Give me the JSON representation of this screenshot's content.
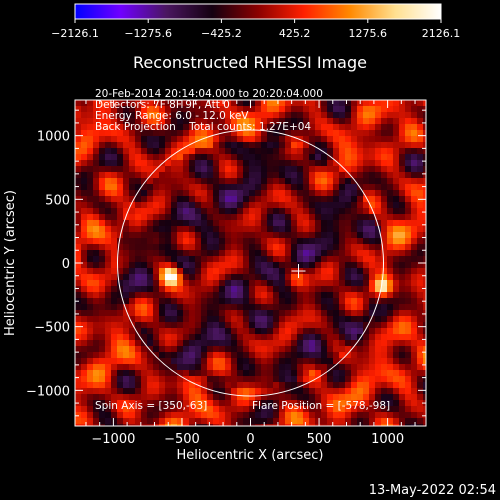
{
  "chart_data": {
    "type": "heatmap",
    "title": "Reconstructed RHESSI Image",
    "xlabel": "Heliocentric X (arcsec)",
    "ylabel": "Heliocentric Y (arcsec)",
    "xlim": [
      -1280,
      1280
    ],
    "ylim": [
      -1280,
      1280
    ],
    "xticks": [
      -1000,
      -500,
      0,
      500,
      1000
    ],
    "yticks": [
      -1000,
      -500,
      0,
      500,
      1000
    ],
    "colorbar": {
      "range": [
        -2126.1,
        2126.1
      ],
      "tick_values": [
        -2126.1,
        -1275.6,
        -425.2,
        425.2,
        1275.6,
        2126.1
      ],
      "tick_labels": [
        "−2126.1",
        "−1275.6",
        "−425.2",
        "425.2",
        "1275.6",
        "2126.1"
      ],
      "colors": [
        "#0000ff",
        "#7000ff",
        "#4a1660",
        "#140010",
        "#8b0000",
        "#ff2000",
        "#ff8800",
        "#ffe090",
        "#ffffff"
      ]
    },
    "info_lines": [
      "20-Feb-2014 20:14:04.000 to 20:20:04.000",
      "Detectors: 7F 8F 9F, Att 0",
      "Energy Range: 6.0 - 12.0 keV",
      "Back Projection    Total counts: 1.27E+04"
    ],
    "spin_axis_text": "Spin Axis = [350,-63]",
    "flare_position_text": "Flare Position = [-578,-98]",
    "solar_limb": {
      "center": [
        0,
        0
      ],
      "radius": 970
    },
    "spin_axis_marker": [
      350,
      -63
    ],
    "bright_sources": [
      {
        "x": -578,
        "y": -98,
        "value": 2126.1
      },
      {
        "x": 950,
        "y": -190,
        "value": 1700
      },
      {
        "x": 330,
        "y": -120,
        "value": 1100
      },
      {
        "x": -680,
        "y": 200,
        "value": 900
      }
    ]
  },
  "footer": {
    "date_text": "13-May-2022 02:54"
  },
  "colors": {
    "background": "#000000",
    "foreground": "#ffffff"
  }
}
